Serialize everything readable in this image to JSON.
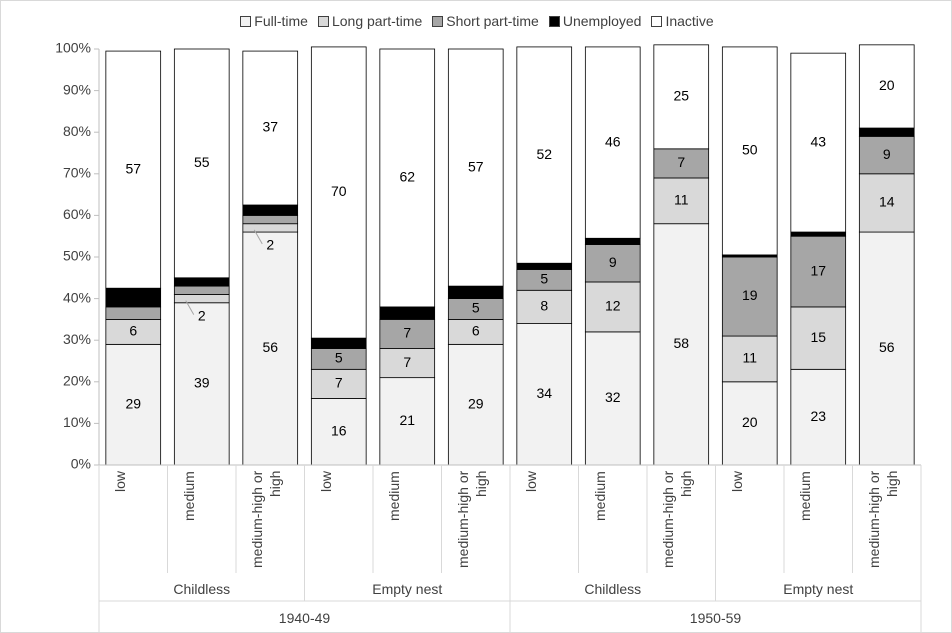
{
  "chart_data": {
    "type": "stacked_bar",
    "cohorts": [
      {
        "name": "1940-49",
        "groups": [
          {
            "name": "Childless",
            "categories": [
              "low",
              "medium",
              "medium-high or high"
            ]
          },
          {
            "name": "Empty nest",
            "categories": [
              "low",
              "medium",
              "medium-high or high"
            ]
          }
        ]
      },
      {
        "name": "1950-59",
        "groups": [
          {
            "name": "Childless",
            "categories": [
              "low",
              "medium",
              "medium-high or high"
            ]
          },
          {
            "name": "Empty nest",
            "categories": [
              "low",
              "medium",
              "medium-high or high"
            ]
          }
        ]
      }
    ],
    "series": [
      {
        "name": "Full-time",
        "color": "#f2f2f2",
        "values": [
          29,
          39,
          56,
          16,
          21,
          29,
          34,
          32,
          58,
          20,
          23,
          56
        ],
        "value_labels": [
          "29",
          "39",
          "56",
          "16",
          "21",
          "29",
          "34",
          "32",
          "58",
          "20",
          "23",
          "56"
        ]
      },
      {
        "name": "Long part-time",
        "color": "#d9d9d9",
        "values": [
          6,
          2,
          2,
          7,
          7,
          6,
          8,
          12,
          11,
          11,
          15,
          14
        ],
        "value_labels": [
          "6",
          "2",
          "2",
          "7",
          "7",
          "6",
          "8",
          "12",
          "11",
          "11",
          "15",
          "14"
        ]
      },
      {
        "name": "Short part-time",
        "color": "#a6a6a6",
        "values": [
          3,
          2,
          2,
          5,
          7,
          5,
          5,
          9,
          7,
          19,
          17,
          9
        ],
        "value_labels": [
          null,
          null,
          null,
          "5",
          "7",
          "5",
          "5",
          "9",
          "7",
          "19",
          "17",
          "9"
        ]
      },
      {
        "name": "Unemployed",
        "color": "#000000",
        "values": [
          4.5,
          2,
          2.5,
          2.5,
          3,
          3,
          1.5,
          1.5,
          0,
          0.5,
          1,
          2
        ],
        "value_labels": [
          null,
          null,
          null,
          null,
          null,
          null,
          null,
          null,
          null,
          null,
          null,
          null
        ]
      },
      {
        "name": "Inactive",
        "color": "#ffffff",
        "values": [
          57,
          55,
          37,
          70,
          62,
          57,
          52,
          46,
          25,
          50,
          43,
          20
        ],
        "value_labels": [
          "57",
          "55",
          "37",
          "70",
          "62",
          "57",
          "52",
          "46",
          "25",
          "50",
          "43",
          "20"
        ]
      }
    ],
    "ylim": [
      0,
      100
    ],
    "yticks": [
      {
        "value": 0,
        "label": "0%"
      },
      {
        "value": 10,
        "label": "10%"
      },
      {
        "value": 20,
        "label": "20%"
      },
      {
        "value": 30,
        "label": "30%"
      },
      {
        "value": 40,
        "label": "40%"
      },
      {
        "value": 50,
        "label": "50%"
      },
      {
        "value": 60,
        "label": "60%"
      },
      {
        "value": 70,
        "label": "70%"
      },
      {
        "value": 80,
        "label": "80%"
      },
      {
        "value": 90,
        "label": "90%"
      },
      {
        "value": 100,
        "label": "100%"
      }
    ],
    "legend": "top"
  }
}
